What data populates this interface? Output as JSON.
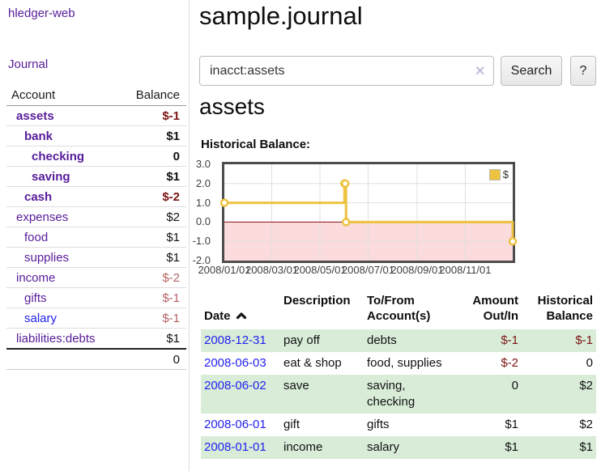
{
  "app": {
    "brand": "hledger-web",
    "nav": {
      "journal": "Journal"
    }
  },
  "sidebar": {
    "header": {
      "account": "Account",
      "balance": "Balance"
    },
    "rows": [
      {
        "label": "assets",
        "level": 0,
        "bold": true,
        "balance": "$-1",
        "balance_style": "negative",
        "link_style": "purple"
      },
      {
        "label": "bank",
        "level": 1,
        "bold": true,
        "balance": "$1",
        "balance_style": "normal",
        "link_style": "purple"
      },
      {
        "label": "checking",
        "level": 2,
        "bold": true,
        "balance": "0",
        "balance_style": "normal",
        "link_style": "purple"
      },
      {
        "label": "saving",
        "level": 2,
        "bold": true,
        "balance": "$1",
        "balance_style": "normal",
        "link_style": "purple"
      },
      {
        "label": "cash",
        "level": 1,
        "bold": true,
        "balance": "$-2",
        "balance_style": "negative",
        "link_style": "purple"
      },
      {
        "label": "expenses",
        "level": 0,
        "bold": false,
        "balance": "$2",
        "balance_style": "normal",
        "link_style": "purple"
      },
      {
        "label": "food",
        "level": 1,
        "bold": false,
        "balance": "$1",
        "balance_style": "normal",
        "link_style": "purple"
      },
      {
        "label": "supplies",
        "level": 1,
        "bold": false,
        "balance": "$1",
        "balance_style": "normal",
        "link_style": "purple"
      },
      {
        "label": "income",
        "level": 0,
        "bold": false,
        "balance": "$-2",
        "balance_style": "negative-muted",
        "link_style": "purple"
      },
      {
        "label": "gifts",
        "level": 1,
        "bold": false,
        "balance": "$-1",
        "balance_style": "negative-muted",
        "link_style": "purple"
      },
      {
        "label": "salary",
        "level": 1,
        "bold": false,
        "balance": "$-1",
        "balance_style": "negative-muted",
        "link_style": "blue"
      },
      {
        "label": "liabilities:debts",
        "level": 0,
        "bold": false,
        "balance": "$1",
        "balance_style": "normal",
        "link_style": "purple"
      }
    ],
    "total": "0"
  },
  "main": {
    "title": "sample.journal",
    "search": {
      "value": "inacct:assets",
      "clear_icon": "✕",
      "button_label": "Search",
      "help_label": "?"
    },
    "account_heading": "assets",
    "chart_title": "Historical Balance:"
  },
  "transactions": {
    "headers": {
      "date": "Date",
      "description": "Description",
      "tofrom": "To/From\nAccount(s)",
      "amount": "Amount\nOut/In",
      "historical": "Historical\nBalance"
    },
    "rows": [
      {
        "date": "2008-12-31",
        "description": "pay off",
        "accounts": "debts",
        "amount": "$-1",
        "amount_negative": true,
        "historical": "$-1",
        "historical_negative": true
      },
      {
        "date": "2008-06-03",
        "description": "eat & shop",
        "accounts": "food, supplies",
        "amount": "$-2",
        "amount_negative": true,
        "historical": "0",
        "historical_negative": false
      },
      {
        "date": "2008-06-02",
        "description": "save",
        "accounts": "saving, checking",
        "amount": "0",
        "amount_negative": false,
        "historical": "$2",
        "historical_negative": false
      },
      {
        "date": "2008-06-01",
        "description": "gift",
        "accounts": "gifts",
        "amount": "$1",
        "amount_negative": false,
        "historical": "$2",
        "historical_negative": false
      },
      {
        "date": "2008-01-01",
        "description": "income",
        "accounts": "salary",
        "amount": "$1",
        "amount_negative": false,
        "historical": "$1",
        "historical_negative": false
      }
    ]
  },
  "chart_data": {
    "type": "line",
    "step": true,
    "title": "Historical Balance",
    "series": [
      {
        "name": "$",
        "color": "#edc240",
        "points": [
          [
            "2008-01-01",
            1
          ],
          [
            "2008-06-01",
            2
          ],
          [
            "2008-06-02",
            2
          ],
          [
            "2008-06-03",
            0
          ],
          [
            "2008-12-31",
            -1
          ]
        ]
      }
    ],
    "x_start": "2008-01-01",
    "x_end": "2008-12-31",
    "x_range_days": 365,
    "x_ticks": [
      {
        "date": "2008-01-01",
        "label": "2008/01/01"
      },
      {
        "date": "2008-03-01",
        "label": "2008/03/01"
      },
      {
        "date": "2008-05-01",
        "label": "2008/05/01"
      },
      {
        "date": "2008-07-01",
        "label": "2008/07/01"
      },
      {
        "date": "2008-09-01",
        "label": "2008/09/01"
      },
      {
        "date": "2008-11-01",
        "label": "2008/11/01"
      }
    ],
    "y_ticks": [
      {
        "v": 3,
        "label": "3.0"
      },
      {
        "v": 2,
        "label": "2.0"
      },
      {
        "v": 1,
        "label": "1.0"
      },
      {
        "v": 0,
        "label": "0.0"
      },
      {
        "v": -1,
        "label": "-1.0"
      },
      {
        "v": -2,
        "label": "-2.0"
      }
    ],
    "ylim": [
      -2,
      3
    ],
    "grid": true,
    "legend_position": "top-right",
    "negative_region_color": "#fbdbdb",
    "zero_line_color": "#8b1111",
    "grid_color": "#e0e0e0"
  },
  "colors": {
    "link_purple": "#571c99",
    "link_blue": "#2222ee",
    "negative": "#7d1414",
    "negative_muted": "#b56161",
    "row_stripe_green": "#d8ecd8",
    "accent_yellow": "#edc240"
  }
}
